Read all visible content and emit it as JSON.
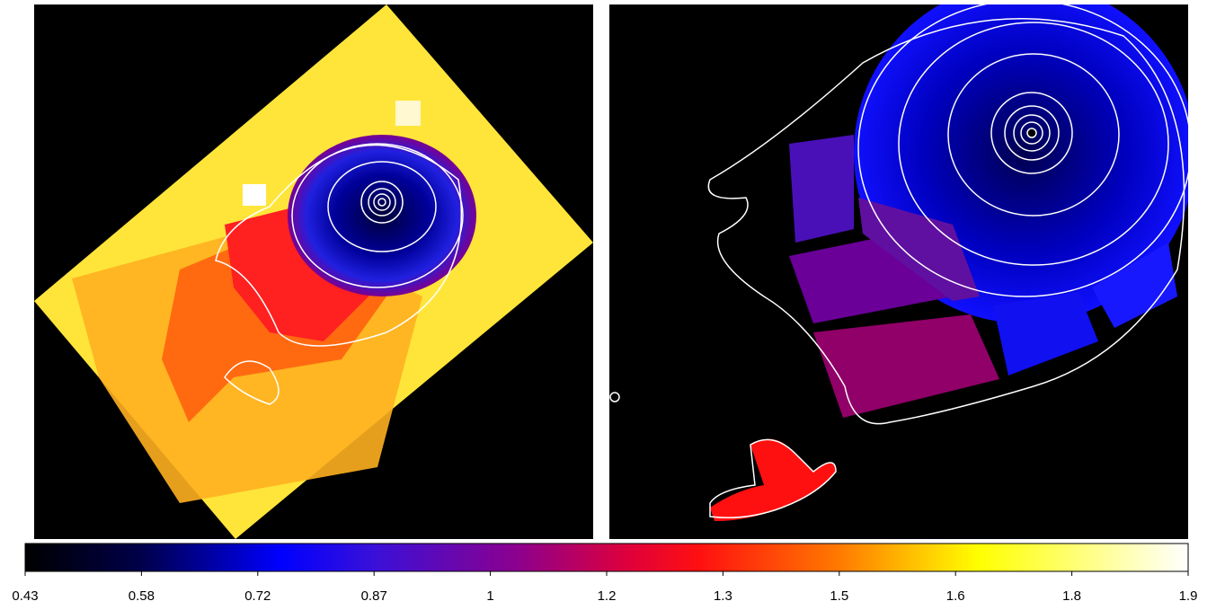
{
  "colorbar": {
    "ticks": [
      0.43,
      0.58,
      0.72,
      0.87,
      1,
      1.2,
      1.3,
      1.5,
      1.6,
      1.8,
      1.9
    ]
  }
}
